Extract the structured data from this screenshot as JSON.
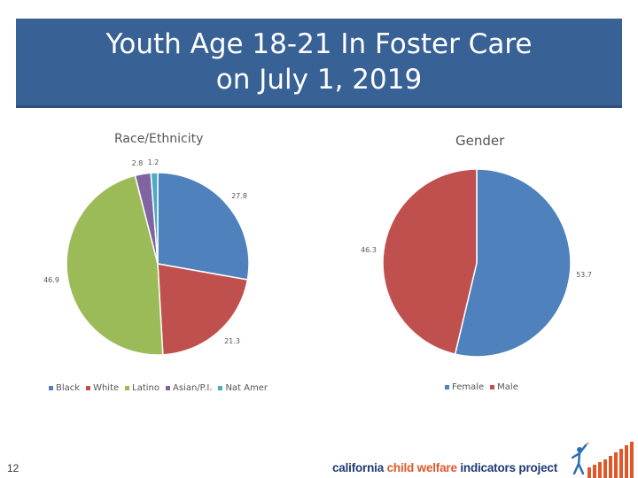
{
  "title": {
    "line1": "Youth Age 18-21 In Foster Care",
    "line2": "on July 1, 2019"
  },
  "chart_data": [
    {
      "type": "pie",
      "title": "Race/Ethnicity",
      "categories": [
        "Black",
        "White",
        "Latino",
        "Asian/P.I.",
        "Nat Amer"
      ],
      "values": [
        27.8,
        21.3,
        46.9,
        2.8,
        1.2
      ],
      "labels": [
        "27.8",
        "21.3",
        "46.9",
        "2.8",
        "1.2"
      ],
      "colors": [
        "#4f81bd",
        "#c0504d",
        "#9bbb59",
        "#8064a2",
        "#4bacc6"
      ],
      "start_angle_deg": 0,
      "direction": "clockwise",
      "legend_position": "bottom"
    },
    {
      "type": "pie",
      "title": "Gender",
      "categories": [
        "Female",
        "Male"
      ],
      "values": [
        53.7,
        46.3
      ],
      "labels": [
        "53.7",
        "46.3"
      ],
      "colors": [
        "#4f81bd",
        "#c0504d"
      ],
      "start_angle_deg": 0,
      "direction": "clockwise",
      "legend_position": "bottom"
    }
  ],
  "footer": {
    "page_number": "12",
    "logo_words": [
      "california",
      "child welfare",
      "indicators project"
    ],
    "logo_colors": {
      "navy": "#1f3b75",
      "orange": "#e0582a",
      "figure": "#2a6fb5"
    }
  }
}
